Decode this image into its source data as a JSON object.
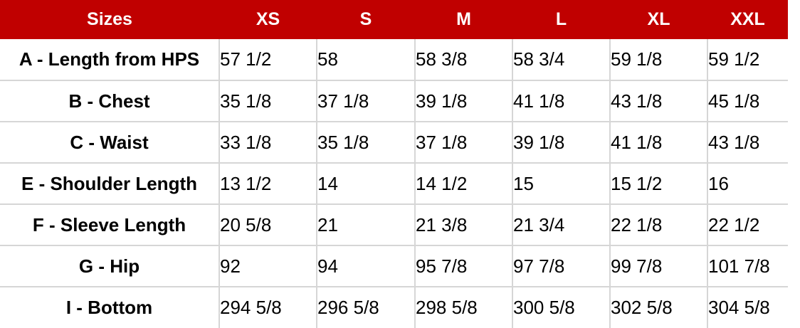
{
  "chart_data": {
    "type": "table",
    "title": "Sizes",
    "categories": [
      "XS",
      "S",
      "M",
      "L",
      "XL",
      "XXL"
    ],
    "series": [
      {
        "name": "A - Length from HPS",
        "values": [
          "57 1/2",
          "58",
          "58 3/8",
          "58 3/4",
          "59 1/8",
          "59 1/2"
        ]
      },
      {
        "name": "B - Chest",
        "values": [
          "35 1/8",
          "37 1/8",
          "39 1/8",
          "41 1/8",
          "43 1/8",
          "45 1/8"
        ]
      },
      {
        "name": "C - Waist",
        "values": [
          "33 1/8",
          "35 1/8",
          "37 1/8",
          "39 1/8",
          "41 1/8",
          "43 1/8"
        ]
      },
      {
        "name": "E - Shoulder Length",
        "values": [
          "13 1/2",
          "14",
          "14 1/2",
          "15",
          "15 1/2",
          "16"
        ]
      },
      {
        "name": "F - Sleeve Length",
        "values": [
          "20 5/8",
          "21",
          "21 3/8",
          "21 3/4",
          "22 1/8",
          "22 1/2"
        ]
      },
      {
        "name": "G - Hip",
        "values": [
          "92",
          "94",
          "95 7/8",
          "97 7/8",
          "99 7/8",
          "101 7/8"
        ]
      },
      {
        "name": "I - Bottom",
        "values": [
          "294 5/8",
          "296 5/8",
          "298 5/8",
          "300 5/8",
          "302 5/8",
          "304 5/8"
        ]
      }
    ],
    "layout": {
      "legend": "none",
      "grid": "light-gray-lines",
      "header_position": "top"
    },
    "colors": {
      "header_bg": "#C00000",
      "header_text": "#FFFFFF",
      "grid_line": "#D6D6D6",
      "body_text": "#000000",
      "background": "#FFFFFF"
    }
  }
}
